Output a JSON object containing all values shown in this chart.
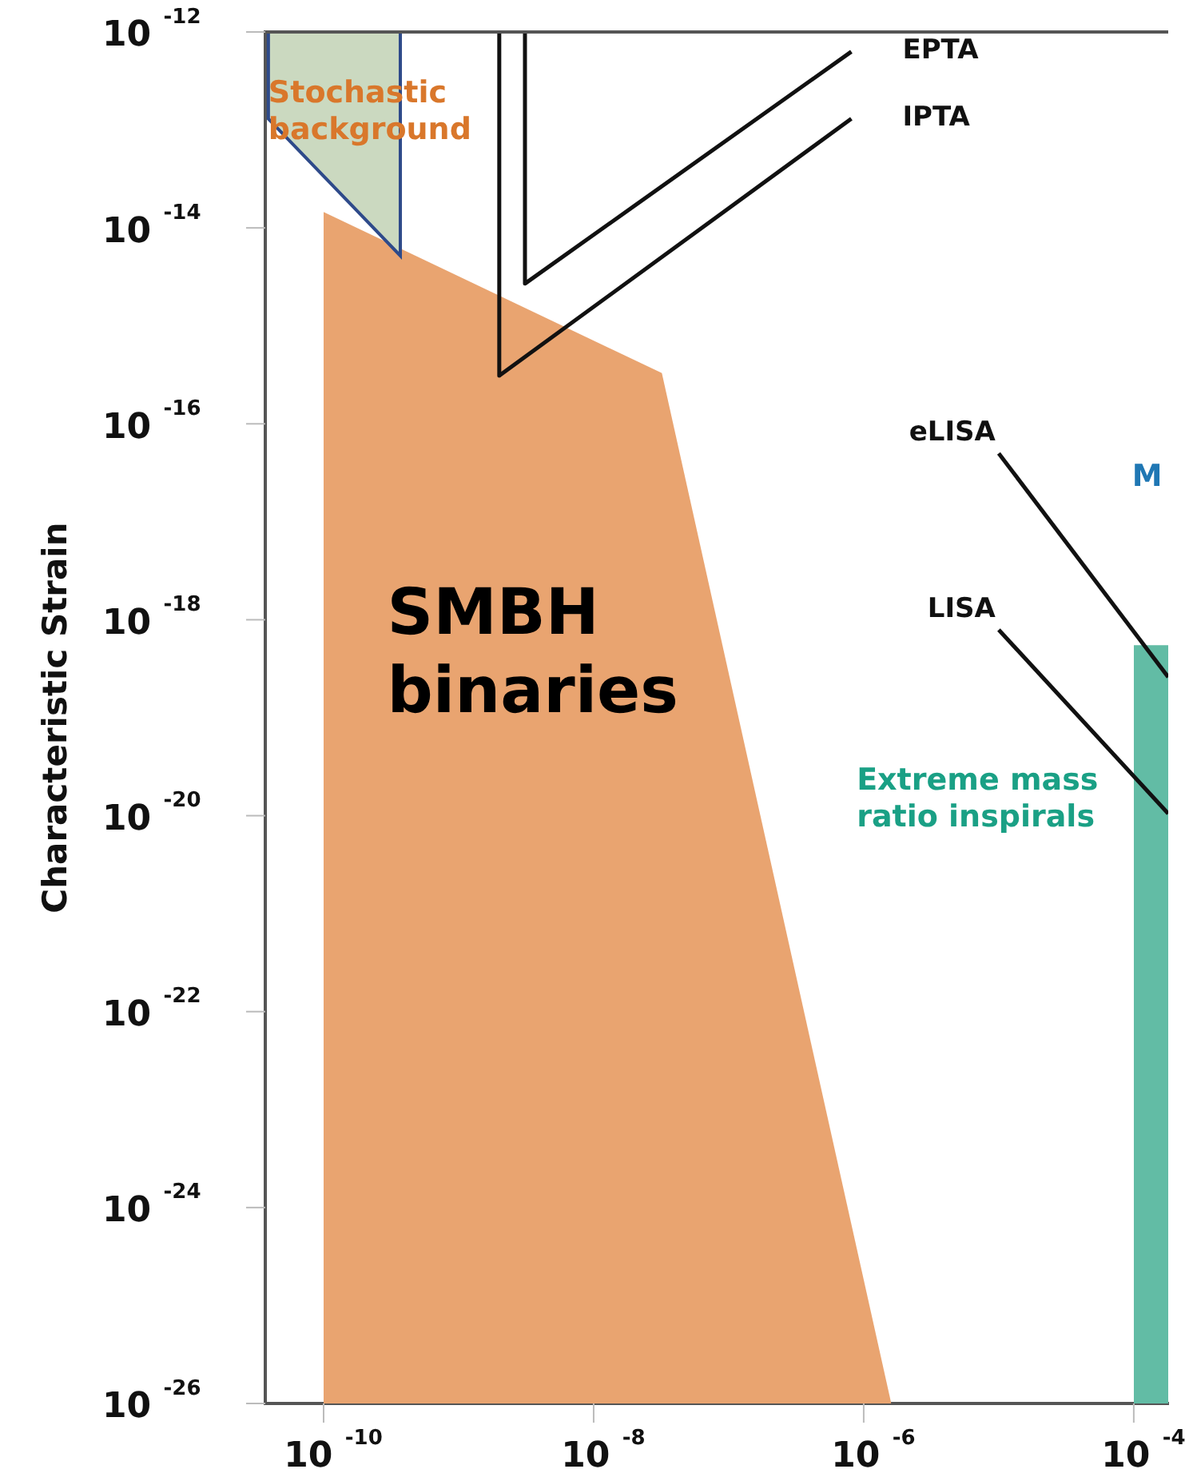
{
  "chart_data": {
    "type": "area",
    "ylabel": "Characteristic Strain",
    "log": "xy",
    "grid": false,
    "marker": "none",
    "xlim": [
      3.7e-11,
      0.00018
    ],
    "ylim": [
      1e-26,
      1e-12
    ],
    "xticks": [
      {
        "value": 1e-10,
        "label": "10$^{-10}$"
      },
      {
        "value": 1e-08,
        "label": "10$^{-8}$"
      },
      {
        "value": 1e-06,
        "label": "10$^{-6}$"
      },
      {
        "value": 0.0001,
        "label": "10$^{-4}$"
      }
    ],
    "yticks": [
      {
        "value": 1e-12,
        "label": "10$^{-12}$"
      },
      {
        "value": 1e-14,
        "label": "10$^{-14}$"
      },
      {
        "value": 1e-16,
        "label": "10$^{-16}$"
      },
      {
        "value": 1e-18,
        "label": "10$^{-18}$"
      },
      {
        "value": 1e-20,
        "label": "10$^{-20}$"
      },
      {
        "value": 1e-22,
        "label": "10$^{-22}$"
      },
      {
        "value": 1e-24,
        "label": "10$^{-24}$"
      },
      {
        "value": 1e-26,
        "label": "10$^{-26}$"
      }
    ],
    "series": [
      {
        "color": "#e9a470",
        "x": [
          1e-10,
          3.2e-08,
          1.6e-06
        ],
        "values": [
          1.45e-14,
          3.3e-16,
          1e-26
        ]
      },
      {
        "color": "#cbd9c0",
        "x": [
          3.9e-11,
          3.7e-10,
          3.7e-10,
          3.9e-11,
          3.9e-11
        ],
        "values": [
          1e-12,
          1e-12,
          5.2e-15,
          1.3e-13,
          1e-12
        ]
      },
      {
        "color": "#62bca5",
        "x": [
          0.0001,
          0.00018
        ],
        "values": [
          5.5e-19,
          5.5e-19
        ]
      },
      {
        "type": "line",
        "name": "EPTA",
        "color": "#111111",
        "x": [
          3.1e-09,
          3.1e-09,
          8.1e-07
        ],
        "values": [
          1e-12,
          2.7e-15,
          6.3e-13
        ]
      },
      {
        "type": "line",
        "name": "IPTA",
        "color": "#111111",
        "x": [
          2e-09,
          2e-09,
          8.1e-07
        ],
        "values": [
          1e-12,
          3.1e-16,
          1.3e-13
        ]
      },
      {
        "type": "line",
        "name": "eLISA",
        "color": "#111111",
        "x": [
          1e-05,
          0.00018
        ],
        "values": [
          5e-17,
          2.6e-19
        ]
      },
      {
        "type": "line",
        "name": "LISA",
        "color": "#111111",
        "x": [
          1e-05,
          0.00018
        ],
        "values": [
          7.9e-19,
          1.05e-20
        ]
      }
    ],
    "annotations": [
      {
        "text": "Stochastic\nbackground",
        "x": 3.9e-11,
        "y": 1.5e-13
      },
      "SMBH\nbinaries",
      "Extreme mass\nratio inspirals",
      "M"
    ]
  }
}
